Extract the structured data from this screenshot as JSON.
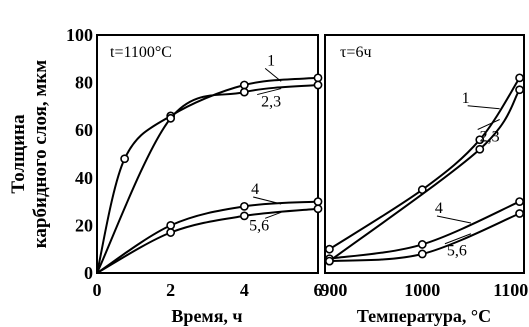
{
  "chart_data": {
    "type": "line",
    "ylabel_line1": "Толщина",
    "ylabel_line2": "карбидного слоя, мкм",
    "ylim": [
      0,
      100
    ],
    "yticks": [
      "0",
      "20",
      "40",
      "60",
      "80",
      "100"
    ],
    "panels": [
      {
        "condition": "t=1100°C",
        "xlabel": "Время, ч",
        "xlim": [
          0,
          6
        ],
        "xticks": [
          "0",
          "2",
          "4",
          "6"
        ],
        "series": [
          {
            "name": "1",
            "x": [
              0,
              0.75,
              2,
              4,
              6
            ],
            "y": [
              0,
              48,
              66,
              79,
              82
            ]
          },
          {
            "name": "2,3",
            "x": [
              0,
              2,
              4,
              6
            ],
            "y": [
              0,
              65,
              76,
              79
            ]
          },
          {
            "name": "4",
            "x": [
              0,
              2,
              4,
              6
            ],
            "y": [
              0,
              20,
              28,
              30
            ]
          },
          {
            "name": "5,6",
            "x": [
              0,
              2,
              4,
              6
            ],
            "y": [
              0,
              17,
              24,
              27
            ]
          }
        ]
      },
      {
        "condition": "τ=6ч",
        "xlabel": "Температура, °С",
        "xlim": [
          890,
          1115
        ],
        "xticks": [
          "900",
          "1000",
          "1100"
        ],
        "series": [
          {
            "name": "1",
            "x": [
              895,
              1000,
              1065,
              1110
            ],
            "y": [
              10,
              35,
              56,
              82
            ]
          },
          {
            "name": "2,3",
            "x": [
              895,
              1065,
              1110
            ],
            "y": [
              5,
              52,
              77
            ]
          },
          {
            "name": "4",
            "x": [
              895,
              1000,
              1110
            ],
            "y": [
              6,
              12,
              30
            ]
          },
          {
            "name": "5,6",
            "x": [
              895,
              1000,
              1110
            ],
            "y": [
              5,
              8,
              25
            ]
          }
        ]
      }
    ]
  }
}
